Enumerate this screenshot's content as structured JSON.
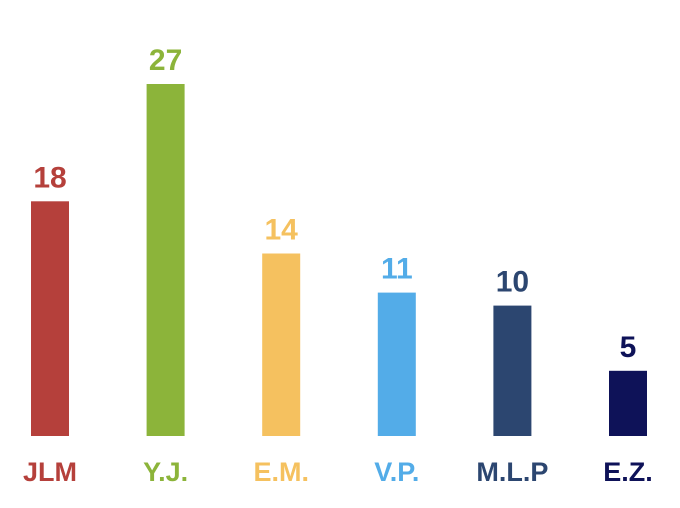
{
  "chart_data": {
    "type": "bar",
    "title": "",
    "xlabel": "",
    "ylabel": "",
    "ylim": [
      0,
      27
    ],
    "grid": false,
    "legend": "none",
    "categories": [
      "JLM",
      "Y.J.",
      "E.M.",
      "V.P.",
      "M.L.P",
      "E.Z."
    ],
    "values": [
      18,
      27,
      14,
      11,
      10,
      5
    ],
    "colors": [
      "#b5403b",
      "#8cb43a",
      "#f5c15f",
      "#53ace8",
      "#2c4670",
      "#0e1258"
    ],
    "value_labels_shown": true
  }
}
